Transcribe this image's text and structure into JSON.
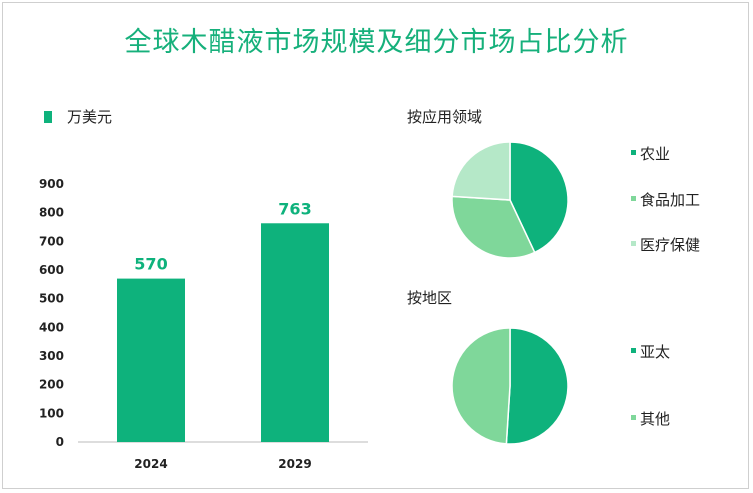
{
  "title": "全球木醋液市场规模及细分市场占比分析",
  "colors": {
    "accent": "#0eb27c",
    "pie_shades": [
      "#0eb27c",
      "#7fd79a",
      "#b5e8c8"
    ],
    "pie_region_shades": [
      "#0eb27c",
      "#7fd79a"
    ],
    "axis": "#bbbbbb",
    "text": "#222222"
  },
  "chart_data": [
    {
      "type": "bar",
      "legend": "万美元",
      "categories": [
        "2024",
        "2029"
      ],
      "values": [
        570,
        763
      ],
      "data_labels": [
        "570",
        "763"
      ],
      "ylim": [
        0,
        900
      ],
      "yticks": [
        "0",
        "100",
        "200",
        "300",
        "400",
        "500",
        "600",
        "700",
        "800",
        "900"
      ],
      "grid": false
    },
    {
      "type": "pie",
      "title": "按应用领域",
      "labels": [
        "农业",
        "食品加工",
        "医疗保健"
      ],
      "values": [
        43,
        33,
        24
      ]
    },
    {
      "type": "pie",
      "title": "按地区",
      "labels": [
        "亚太",
        "其他"
      ],
      "values": [
        51,
        49
      ]
    }
  ]
}
